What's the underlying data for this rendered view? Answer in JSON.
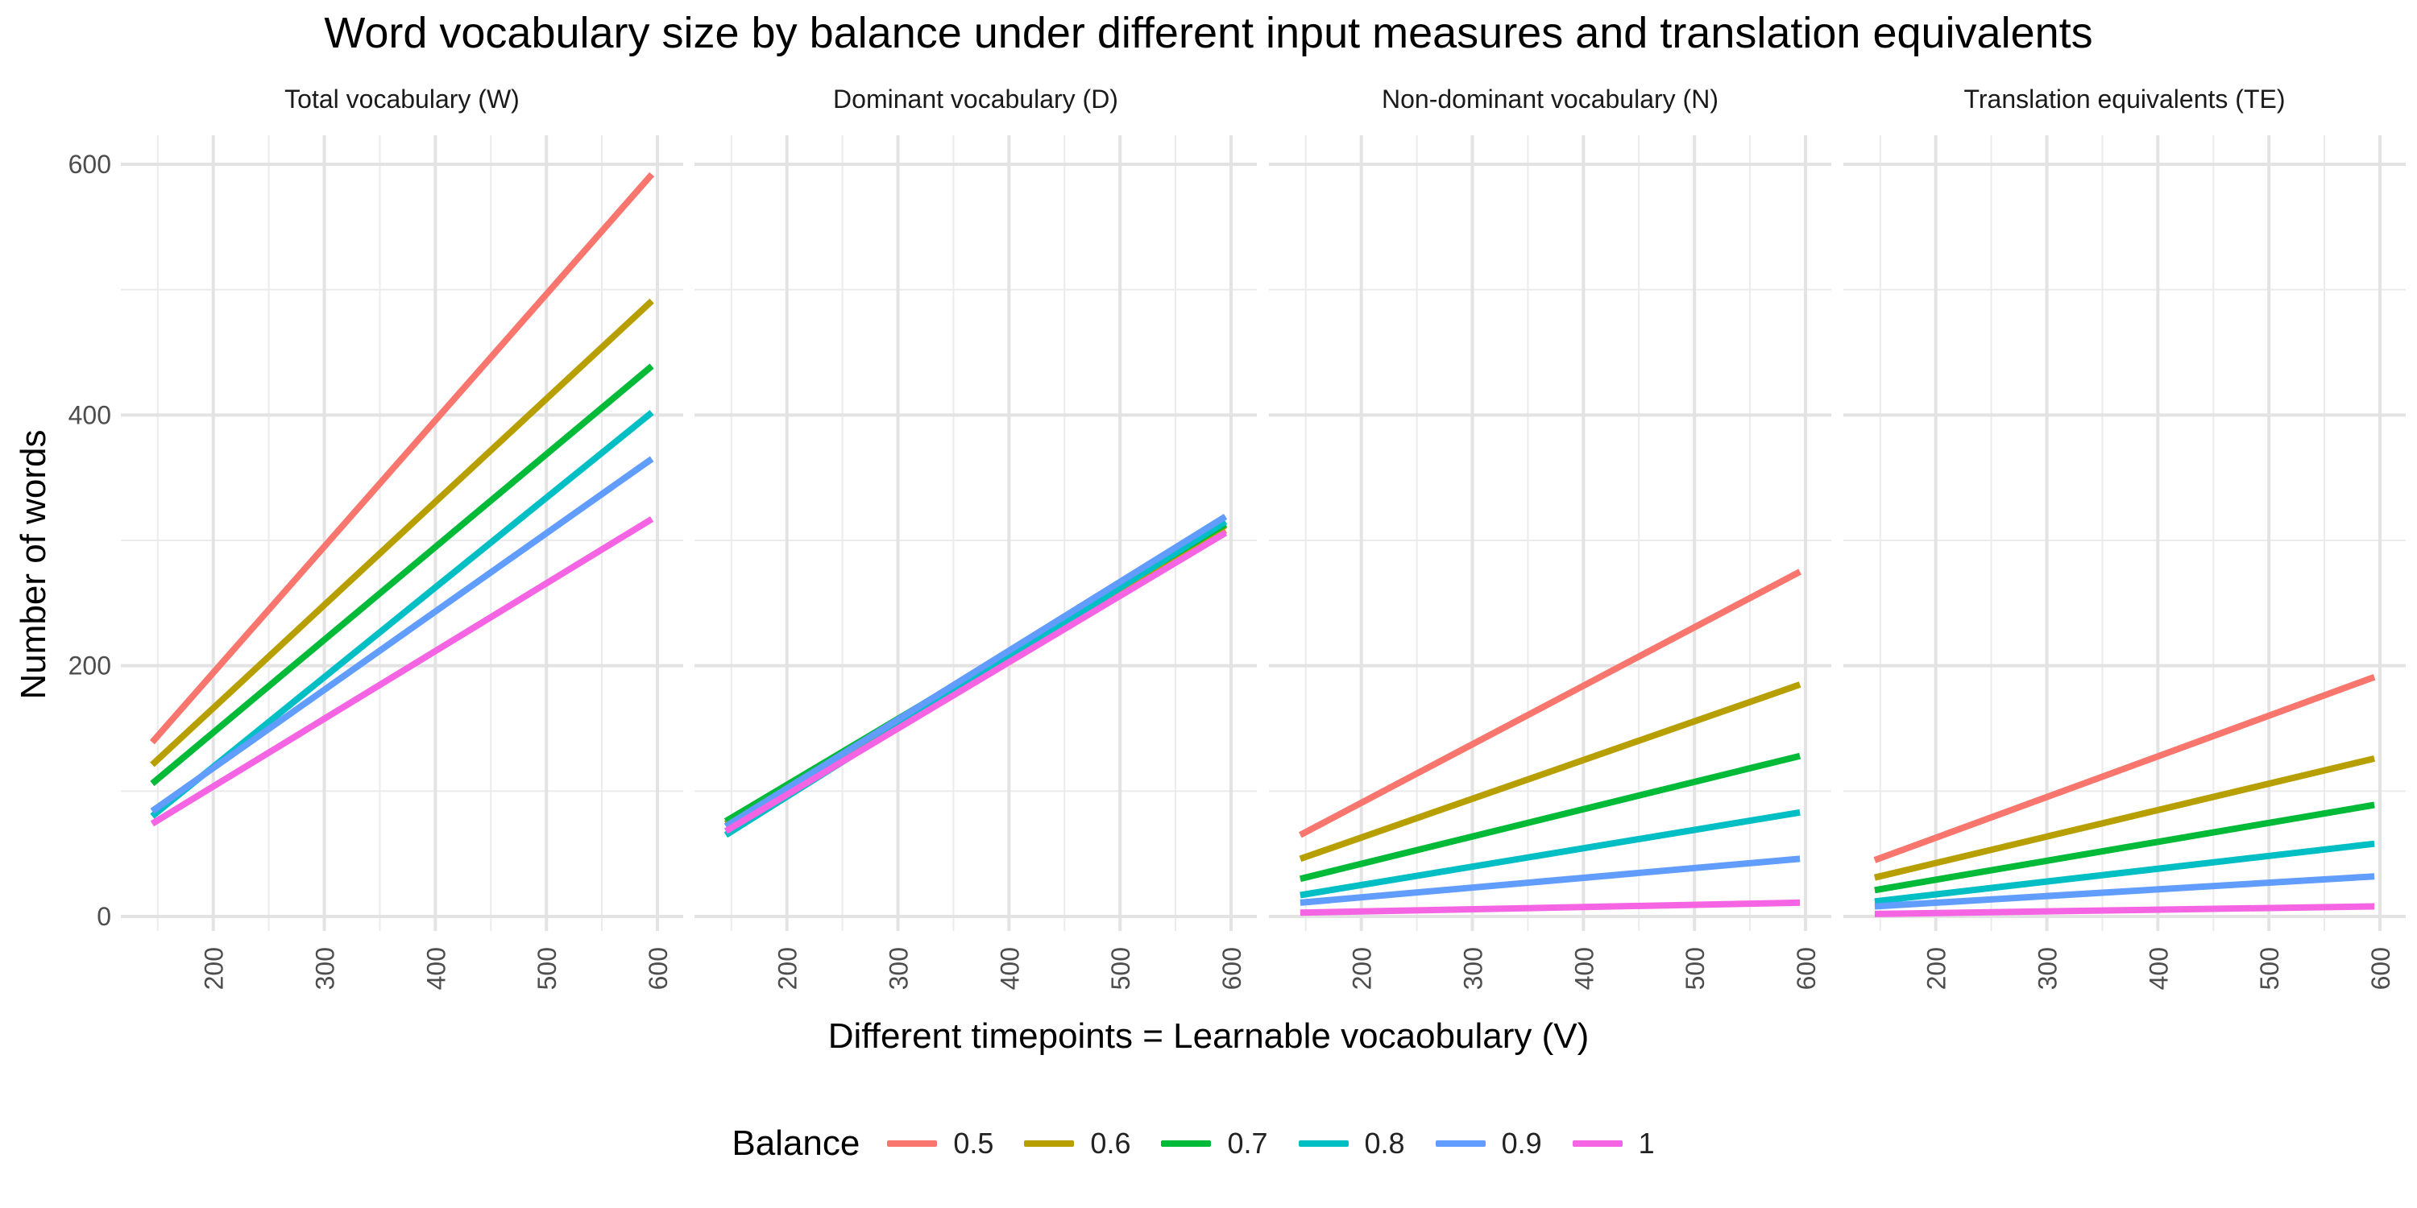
{
  "chart_data": {
    "type": "line",
    "title": "Word vocabulary size by balance under different input measures and translation equivalents",
    "xlabel": "Different timepoints = Learnable vocaobulary (V)",
    "ylabel": "Number of words",
    "xlim": [
      140,
      600
    ],
    "ylim": [
      0,
      600
    ],
    "x_ticks": [
      200,
      300,
      400,
      500,
      600
    ],
    "y_ticks": [
      0,
      200,
      400,
      600
    ],
    "grid": true,
    "legend": {
      "title": "Balance",
      "position": "bottom",
      "entries": [
        {
          "label": "0.5",
          "color": "#F8766D"
        },
        {
          "label": "0.6",
          "color": "#B79F00"
        },
        {
          "label": "0.7",
          "color": "#00BA38"
        },
        {
          "label": "0.8",
          "color": "#00BFC4"
        },
        {
          "label": "0.9",
          "color": "#619CFF"
        },
        {
          "label": "1",
          "color": "#F564E3"
        }
      ]
    },
    "panels": [
      {
        "title": "Total vocabulary (W)",
        "series": [
          {
            "name": "0.5",
            "x": [
              145,
              595
            ],
            "y": [
              139,
              592
            ]
          },
          {
            "name": "0.6",
            "x": [
              145,
              595
            ],
            "y": [
              121,
              491
            ]
          },
          {
            "name": "0.7",
            "x": [
              145,
              595
            ],
            "y": [
              106,
              439
            ]
          },
          {
            "name": "0.8",
            "x": [
              145,
              595
            ],
            "y": [
              80,
              402
            ]
          },
          {
            "name": "0.9",
            "x": [
              145,
              595
            ],
            "y": [
              84,
              365
            ]
          },
          {
            "name": "1",
            "x": [
              145,
              595
            ],
            "y": [
              74,
              317
            ]
          }
        ]
      },
      {
        "title": "Dominant vocabulary (D)",
        "series": [
          {
            "name": "0.5",
            "x": [
              145,
              595
            ],
            "y": [
              72,
              308
            ]
          },
          {
            "name": "0.6",
            "x": [
              145,
              595
            ],
            "y": [
              74,
              312
            ]
          },
          {
            "name": "0.7",
            "x": [
              145,
              595
            ],
            "y": [
              76,
              313
            ]
          },
          {
            "name": "0.8",
            "x": [
              145,
              595
            ],
            "y": [
              65,
              315
            ]
          },
          {
            "name": "0.9",
            "x": [
              145,
              595
            ],
            "y": [
              72,
              319
            ]
          },
          {
            "name": "1",
            "x": [
              145,
              595
            ],
            "y": [
              68,
              306
            ]
          }
        ]
      },
      {
        "title": "Non-dominant vocabulary (N)",
        "series": [
          {
            "name": "0.5",
            "x": [
              145,
              595
            ],
            "y": [
              65,
              275
            ]
          },
          {
            "name": "0.6",
            "x": [
              145,
              595
            ],
            "y": [
              46,
              185
            ]
          },
          {
            "name": "0.7",
            "x": [
              145,
              595
            ],
            "y": [
              30,
              128
            ]
          },
          {
            "name": "0.8",
            "x": [
              145,
              595
            ],
            "y": [
              17,
              83
            ]
          },
          {
            "name": "0.9",
            "x": [
              145,
              595
            ],
            "y": [
              11,
              46
            ]
          },
          {
            "name": "1",
            "x": [
              145,
              595
            ],
            "y": [
              3,
              11
            ]
          }
        ]
      },
      {
        "title": "Translation equivalents (TE)",
        "series": [
          {
            "name": "0.5",
            "x": [
              145,
              595
            ],
            "y": [
              45,
              191
            ]
          },
          {
            "name": "0.6",
            "x": [
              145,
              595
            ],
            "y": [
              31,
              126
            ]
          },
          {
            "name": "0.7",
            "x": [
              145,
              595
            ],
            "y": [
              21,
              89
            ]
          },
          {
            "name": "0.8",
            "x": [
              145,
              595
            ],
            "y": [
              12,
              58
            ]
          },
          {
            "name": "0.9",
            "x": [
              145,
              595
            ],
            "y": [
              8,
              32
            ]
          },
          {
            "name": "1",
            "x": [
              145,
              595
            ],
            "y": [
              2,
              8
            ]
          }
        ]
      }
    ]
  }
}
